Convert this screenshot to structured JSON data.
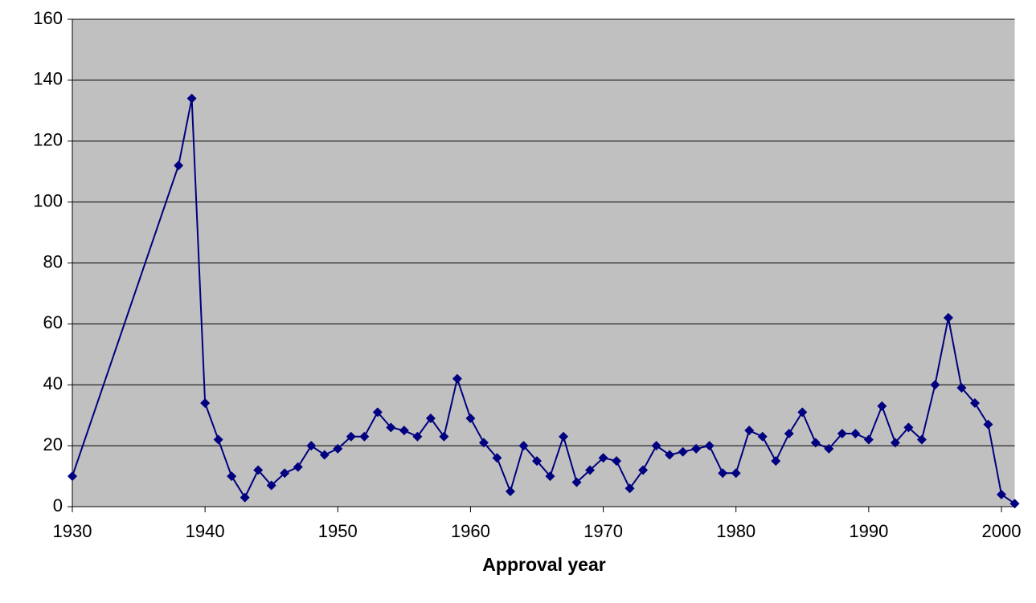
{
  "chart_data": {
    "type": "line",
    "x_label": "Approval year",
    "x": [
      1930,
      1938,
      1939,
      1940,
      1941,
      1942,
      1943,
      1944,
      1945,
      1946,
      1947,
      1948,
      1949,
      1950,
      1951,
      1952,
      1953,
      1954,
      1955,
      1956,
      1957,
      1958,
      1959,
      1960,
      1961,
      1962,
      1963,
      1964,
      1965,
      1966,
      1967,
      1968,
      1969,
      1970,
      1971,
      1972,
      1973,
      1974,
      1975,
      1976,
      1977,
      1978,
      1979,
      1980,
      1981,
      1982,
      1983,
      1984,
      1985,
      1986,
      1987,
      1988,
      1989,
      1990,
      1991,
      1992,
      1993,
      1994,
      1995,
      1996,
      1997,
      1998,
      1999,
      2000,
      2001
    ],
    "values": [
      10,
      112,
      134,
      34,
      22,
      10,
      3,
      12,
      7,
      11,
      13,
      20,
      17,
      19,
      23,
      23,
      31,
      26,
      25,
      23,
      29,
      23,
      42,
      29,
      21,
      16,
      5,
      20,
      15,
      10,
      23,
      8,
      12,
      16,
      15,
      6,
      12,
      20,
      17,
      18,
      19,
      20,
      11,
      11,
      25,
      23,
      15,
      24,
      31,
      21,
      19,
      24,
      24,
      22,
      33,
      21,
      26,
      22,
      40,
      62,
      39,
      34,
      27,
      4,
      1
    ],
    "color": "#000080",
    "plot_background": "#c0c0c0",
    "xlim": [
      1930,
      2001
    ],
    "xticks": [
      1930,
      1940,
      1950,
      1960,
      1970,
      1980,
      1990,
      2000
    ],
    "ylim": [
      0,
      160
    ],
    "yticks": [
      0,
      20,
      40,
      60,
      80,
      100,
      120,
      140,
      160
    ],
    "grid": true
  }
}
